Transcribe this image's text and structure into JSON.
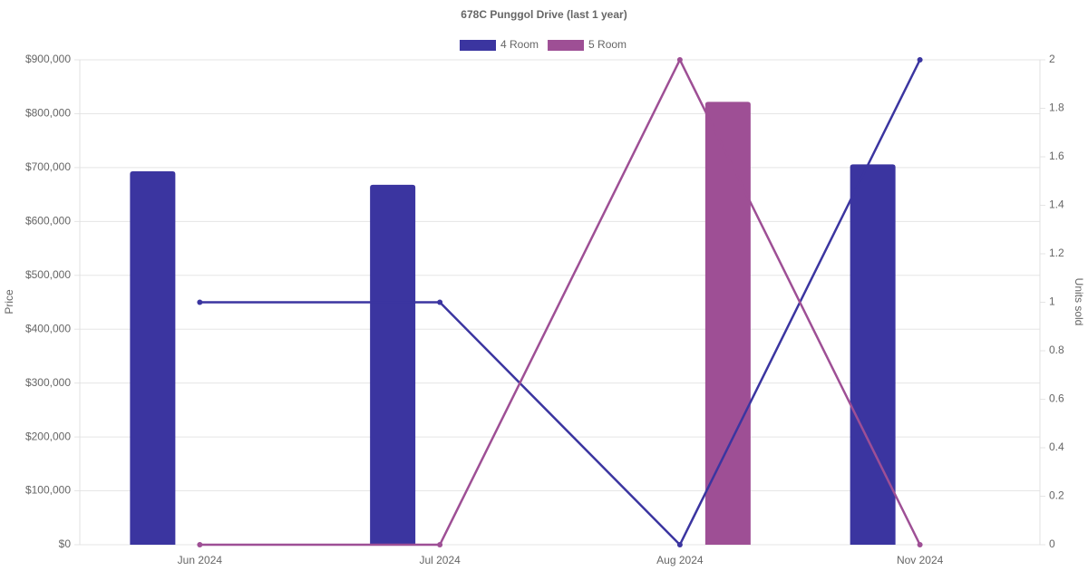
{
  "chart_data": {
    "type": "bar-line",
    "title": "678C Punggol Drive (last 1 year)",
    "y_label": "Price",
    "y2_label": "Units sold",
    "categories": [
      "Jun 2024",
      "Jul 2024",
      "Aug 2024",
      "Nov 2024"
    ],
    "series": [
      {
        "name": "4 Room",
        "color": "#3b35a0",
        "values": [
          693000,
          668000,
          null,
          706000
        ],
        "units_sold": [
          1,
          1,
          0,
          2
        ]
      },
      {
        "name": "5 Room",
        "color": "#9e4f95",
        "values": [
          null,
          null,
          822000,
          null
        ],
        "units_sold": [
          0,
          0,
          2,
          0
        ]
      }
    ],
    "ylim": [
      0,
      900000
    ],
    "yticks": [
      {
        "value": 0,
        "label": "$0"
      },
      {
        "value": 100000,
        "label": "$100,000"
      },
      {
        "value": 200000,
        "label": "$200,000"
      },
      {
        "value": 300000,
        "label": "$300,000"
      },
      {
        "value": 400000,
        "label": "$400,000"
      },
      {
        "value": 500000,
        "label": "$500,000"
      },
      {
        "value": 600000,
        "label": "$600,000"
      },
      {
        "value": 700000,
        "label": "$700,000"
      },
      {
        "value": 800000,
        "label": "$800,000"
      },
      {
        "value": 900000,
        "label": "$900,000"
      }
    ],
    "y2lim": [
      0,
      2
    ],
    "y2ticks": [
      0,
      0.2,
      0.4,
      0.6,
      0.8,
      1,
      1.2,
      1.4,
      1.6,
      1.8,
      2
    ],
    "grid": true
  }
}
